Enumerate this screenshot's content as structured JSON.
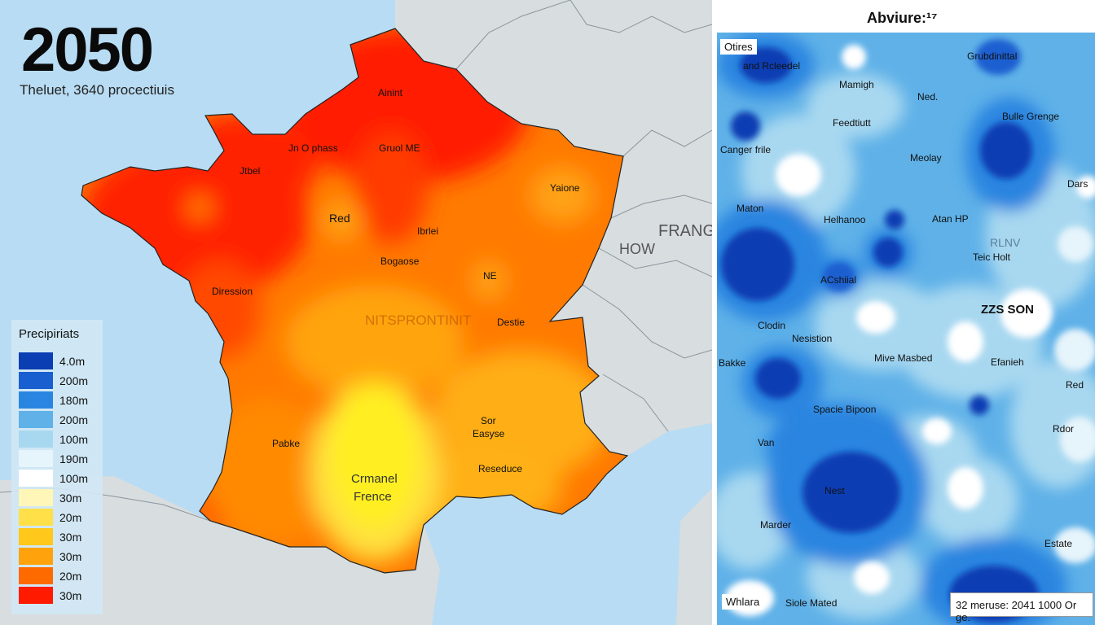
{
  "left": {
    "year": "2050",
    "subtitle": "Theluet, 3640 procectiuis",
    "country_label": "FRANG",
    "neighbor_label": "HOW",
    "watermark": "NITSPRONTINIT",
    "cities": [
      "Ainint",
      "Jn O phass",
      "Gruol ME",
      "Jtbel",
      "Yaione",
      "Red",
      "Ibrlei",
      "Bogaose",
      "NE",
      "Diression",
      "Destie",
      "Sor",
      "Easyse",
      "Pabke",
      "Reseduce",
      "Crmanel",
      "Frence"
    ],
    "legend": {
      "title": "Precipiriats",
      "items": [
        {
          "color": "#0b3eb3",
          "label": "4.0m"
        },
        {
          "color": "#1a5fd0",
          "label": "200m"
        },
        {
          "color": "#2a85e0",
          "label": "180m"
        },
        {
          "color": "#5fb1e8",
          "label": "200m"
        },
        {
          "color": "#a8d8f0",
          "label": "100m"
        },
        {
          "color": "#e6f4fb",
          "label": "190m"
        },
        {
          "color": "#ffffff",
          "label": "100m"
        },
        {
          "color": "#fff6b8",
          "label": "30m"
        },
        {
          "color": "#ffe048",
          "label": "20m"
        },
        {
          "color": "#ffc81a",
          "label": "30m"
        },
        {
          "color": "#ffa20c",
          "label": "30m"
        },
        {
          "color": "#ff6a00",
          "label": "20m"
        },
        {
          "color": "#ff1a00",
          "label": "30m"
        }
      ]
    }
  },
  "right": {
    "title": "Abviure:¹⁷",
    "labels": [
      "Otires",
      "and Rcleedel",
      "Grubdinittal",
      "Mamigh",
      "Ned.",
      "Feedtiutt",
      "Bulle Grenge",
      "Canger frile",
      "Meolay",
      "Dars",
      "Maton",
      "Helhanoo",
      "Atan HP",
      "RLNV",
      "Teic Holt",
      "ACshiial",
      "ZZS SON",
      "Clodin",
      "Nesistion",
      "Mive Masbed",
      "Efanieh",
      "Bakke",
      "Red",
      "Spacie Bipoon",
      "Rdor",
      "Van",
      "Nest",
      "Marder",
      "Estate",
      "Whlara",
      "Siole Mated"
    ],
    "scale": "32 meruse: 2041 1000 Or ge."
  }
}
